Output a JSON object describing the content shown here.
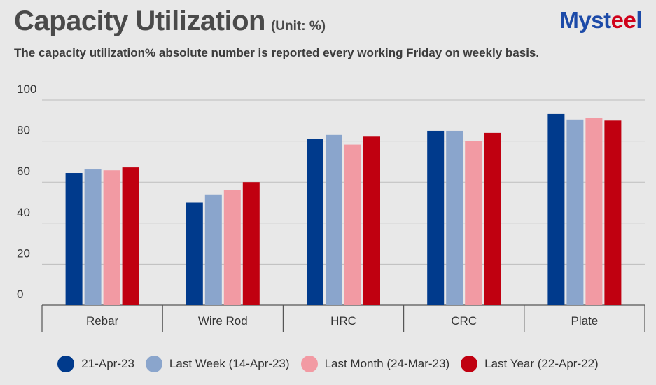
{
  "header": {
    "title": "Capacity Utilization",
    "unit": "(Unit: %)",
    "subtitle": "The capacity utilization% absolute number is reported every working Friday on weekly basis."
  },
  "logo": {
    "text_main": "Myst",
    "text_accent": "ee",
    "text_end": "l"
  },
  "chart_data": {
    "type": "bar",
    "categories": [
      "Rebar",
      "Wire Rod",
      "HRC",
      "CRC",
      "Plate"
    ],
    "series": [
      {
        "name": "21-Apr-23",
        "color": "#003a8c",
        "values": [
          64.5,
          50.0,
          81.2,
          85.0,
          93.2
        ]
      },
      {
        "name": "Last Week (14-Apr-23)",
        "color": "#8aa5cc",
        "values": [
          66.2,
          54.0,
          83.0,
          85.0,
          90.5
        ]
      },
      {
        "name": "Last Month (24-Mar-23)",
        "color": "#f29aa3",
        "values": [
          65.8,
          56.0,
          78.3,
          80.0,
          91.2
        ]
      },
      {
        "name": "Last Year (22-Apr-22)",
        "color": "#c00010",
        "values": [
          67.2,
          60.0,
          82.5,
          84.0,
          90.0
        ]
      }
    ],
    "yticks": [
      "0",
      "20",
      "40",
      "60",
      "80",
      "100"
    ],
    "ylim": [
      0,
      100
    ],
    "grid": true,
    "legend_position": "bottom"
  }
}
